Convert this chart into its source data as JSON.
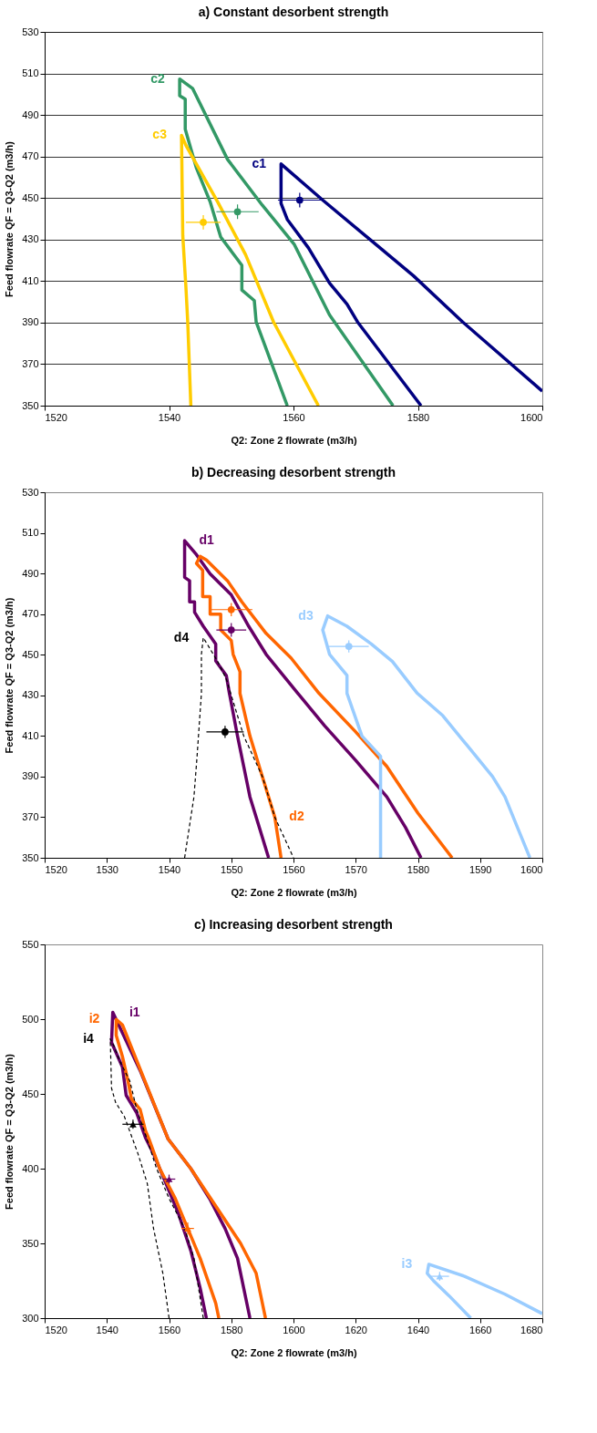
{
  "chart_data": [
    {
      "type": "line",
      "title": "a) Constant desorbent strength",
      "xlabel": "Q2: Zone 2 flowrate (m3/h)",
      "ylabel": "Feed flowrate QF = Q3-Q2 (m3/h)",
      "xlim": [
        1520,
        1600
      ],
      "ylim": [
        350,
        530
      ],
      "xticks": [
        1520,
        1540,
        1560,
        1580,
        1600
      ],
      "yticks": [
        350,
        370,
        390,
        410,
        430,
        450,
        470,
        490,
        510,
        530
      ],
      "grid": "y",
      "series": [
        {
          "name": "c1",
          "color": "#000080",
          "x": [
            1580.5,
            1570.3,
            1568.6,
            1565.8,
            1562.4,
            1559,
            1558,
            1558,
            1564.7,
            1572.5,
            1579.3,
            1587.2,
            1600
          ],
          "values": [
            350,
            390.3,
            398.9,
            409,
            426,
            439.7,
            447.4,
            466.4,
            449,
            429.5,
            412.5,
            390.3,
            357
          ]
        },
        {
          "name": "c2",
          "color": "#339966",
          "x": [
            1559,
            1554,
            1553.7,
            1551.7,
            1551.7,
            1548.3,
            1546.6,
            1544.4,
            1542.6,
            1542.6,
            1541.7,
            1541.7,
            1543.8,
            1549.4,
            1555,
            1560.1,
            1565.8,
            1576
          ],
          "values": [
            350,
            390.3,
            400.6,
            405.7,
            417.6,
            431.2,
            448.2,
            464.4,
            483.1,
            497.6,
            499.3,
            507.3,
            502.7,
            468.6,
            446.5,
            427.8,
            393.7,
            350
          ]
        },
        {
          "name": "c3",
          "color": "#ffcc00",
          "x": [
            1543.5,
            1543,
            1542.7,
            1542.2,
            1542,
            1542.7,
            1547.8,
            1552.3,
            1556.8,
            1564
          ],
          "values": [
            350,
            390.3,
            407.4,
            432,
            480.2,
            475.4,
            448.2,
            422.7,
            390.3,
            350
          ]
        },
        {
          "type": "scatter",
          "marker": "circle",
          "color": "#000080",
          "x": [
            1561
          ],
          "values": [
            449
          ],
          "errors": [
            3.5
          ],
          "xerrors": [
            3.5
          ]
        },
        {
          "type": "scatter",
          "marker": "circle",
          "color": "#339966",
          "x": [
            1551
          ],
          "values": [
            443.4
          ],
          "errors": [
            3.5
          ],
          "xerrors": [
            3.4
          ]
        },
        {
          "type": "scatter",
          "marker": "circle",
          "color": "#ffcc00",
          "x": [
            1545.5
          ],
          "values": [
            438.3
          ],
          "errors": [
            3.5
          ],
          "xerrors": [
            2.8
          ]
        }
      ]
    },
    {
      "type": "line",
      "title": "b) Decreasing desorbent strength",
      "xlabel": "Q2: Zone 2 flowrate (m3/h)",
      "ylabel": "Feed flowrate QF = Q3-Q2 (m3/h)",
      "xlim": [
        1520,
        1600
      ],
      "ylim": [
        350,
        530
      ],
      "xticks": [
        1520,
        1530,
        1540,
        1550,
        1560,
        1570,
        1580,
        1590,
        1600
      ],
      "yticks": [
        350,
        370,
        390,
        410,
        430,
        450,
        470,
        490,
        510,
        530
      ],
      "series": [
        {
          "name": "d1",
          "color": "#660066",
          "x": [
            1556,
            1554.5,
            1553,
            1552,
            1551,
            1549.7,
            1549.2,
            1547.5,
            1547.5,
            1545.5,
            1544.1,
            1544.1,
            1543.3,
            1543.3,
            1542.5,
            1542.5,
            1544.4,
            1546.6,
            1550,
            1552.8,
            1555.6,
            1560.7,
            1565,
            1570,
            1575,
            1578,
            1580.5
          ],
          "values": [
            350,
            365,
            380,
            395,
            410,
            431,
            439.8,
            447,
            455.3,
            464,
            470.9,
            476,
            476,
            486.4,
            488.1,
            506.2,
            499.3,
            489.8,
            479.5,
            464,
            450.2,
            431,
            415,
            398,
            380,
            365,
            350
          ]
        },
        {
          "name": "d2",
          "color": "#ff6600",
          "x": [
            1558,
            1557,
            1555,
            1553,
            1551.4,
            1551.4,
            1550.3,
            1550,
            1548.3,
            1548.3,
            1546.6,
            1546.6,
            1545.4,
            1545.4,
            1544.4,
            1545,
            1546,
            1549.4,
            1551.7,
            1555.6,
            1559.6,
            1564.1,
            1570,
            1575,
            1580,
            1585.5
          ],
          "values": [
            350,
            370,
            390,
            410,
            431,
            441.6,
            450.2,
            457,
            462.2,
            470,
            470,
            478.6,
            478.6,
            491.6,
            495,
            498.4,
            496.7,
            486.4,
            476,
            460.5,
            448.4,
            431,
            412,
            395,
            372,
            350
          ]
        },
        {
          "name": "d3",
          "color": "#99ccff",
          "x": [
            1574,
            1574,
            1571,
            1568.6,
            1568.6,
            1565.8,
            1564.7,
            1565.5,
            1568.6,
            1572.5,
            1575.9,
            1579.9,
            1584,
            1588,
            1592,
            1594,
            1596,
            1598
          ],
          "values": [
            350,
            400,
            410,
            431,
            439.8,
            450.2,
            462.2,
            469.1,
            464,
            455.3,
            446.7,
            431,
            420,
            405,
            390,
            380,
            365,
            350
          ]
        },
        {
          "name": "d4",
          "color": "#000000",
          "line_style": "dashed",
          "x": [
            1542.5,
            1543,
            1544,
            1544.5,
            1545.2,
            1545.2,
            1545.5,
            1547.8,
            1549.2,
            1552,
            1555,
            1557,
            1560
          ],
          "values": [
            350,
            360,
            380,
            400,
            431,
            450.2,
            458.4,
            446.7,
            438,
            410,
            390,
            370,
            350
          ]
        },
        {
          "type": "scatter",
          "marker": "circle",
          "color": "#660066",
          "x": [
            1550
          ],
          "values": [
            462.2
          ],
          "errors": [
            3.4
          ],
          "xerrors": [
            2.4
          ]
        },
        {
          "type": "scatter",
          "marker": "circle",
          "color": "#ff6600",
          "x": [
            1550
          ],
          "values": [
            472.2
          ],
          "errors": [
            3.3
          ],
          "xerrors": [
            3.4
          ]
        },
        {
          "type": "scatter",
          "marker": "circle",
          "color": "#99ccff",
          "x": [
            1568.9
          ],
          "values": [
            454.1
          ],
          "errors": [
            3
          ],
          "xerrors": [
            3.2
          ]
        },
        {
          "type": "scatter",
          "marker": "circle",
          "color": "#000000",
          "x": [
            1549
          ],
          "values": [
            412
          ],
          "errors": [
            3
          ],
          "xerrors": [
            3
          ]
        }
      ]
    },
    {
      "type": "line",
      "title": "c) Increasing desorbent strength",
      "xlabel": "Q2: Zone 2 flowrate (m3/h)",
      "ylabel": "Feed flowrate QF = Q3-Q2 (m3/h)",
      "xlim": [
        1520,
        1680
      ],
      "ylim": [
        300,
        550
      ],
      "xticks": [
        1520,
        1540,
        1560,
        1580,
        1600,
        1620,
        1640,
        1660,
        1680
      ],
      "yticks": [
        300,
        350,
        400,
        450,
        500,
        550
      ],
      "series": [
        {
          "name": "i1",
          "color": "#660066",
          "x": [
            1572,
            1570,
            1567,
            1563,
            1558,
            1555,
            1552.4,
            1549.6,
            1546.2,
            1545,
            1541.5,
            1541.9,
            1550.7,
            1559.7,
            1567,
            1573,
            1578,
            1582,
            1586
          ],
          "values": [
            300,
            320,
            345,
            370,
            395,
            410,
            420.8,
            437.3,
            449.1,
            468,
            484.4,
            504.5,
            465.6,
            419.8,
            400,
            380,
            360,
            340,
            300
          ]
        },
        {
          "name": "i2",
          "color": "#ff6600",
          "x": [
            1576,
            1575,
            1570,
            1566,
            1562,
            1557,
            1553.5,
            1552.4,
            1550.7,
            1547.9,
            1546.8,
            1545,
            1543,
            1543,
            1545,
            1559.7,
            1567,
            1575,
            1583,
            1588,
            1591
          ],
          "values": [
            300,
            310,
            340,
            360,
            380,
            400,
            420,
            425.5,
            439.6,
            446.7,
            458.5,
            475,
            489.2,
            499.8,
            496.2,
            419.8,
            400,
            375,
            350,
            330,
            300
          ]
        },
        {
          "name": "i3",
          "color": "#99ccff",
          "x": [
            1657,
            1650,
            1645,
            1643,
            1643.5,
            1655,
            1668,
            1680
          ],
          "values": [
            300,
            315,
            325,
            330,
            336,
            328,
            316,
            303
          ]
        },
        {
          "name": "i4",
          "color": "#000000",
          "line_style": "dashed",
          "x": [
            1560,
            1558,
            1555,
            1553,
            1550,
            1545.6,
            1542.8,
            1541.5,
            1541.1,
            1542.3,
            1544,
            1547.4,
            1549.6,
            1552.4,
            1556,
            1560,
            1565,
            1568,
            1571
          ],
          "values": [
            300,
            330,
            360,
            390,
            410,
            435,
            444.3,
            453.8,
            486.8,
            482,
            472.6,
            458.5,
            439.6,
            423,
            400,
            380,
            360,
            340,
            300
          ]
        },
        {
          "type": "scatter",
          "marker": "triangle",
          "color": "#660066",
          "x": [
            1560
          ],
          "values": [
            393
          ],
          "errors": [
            3
          ],
          "xerrors": [
            2
          ]
        },
        {
          "type": "scatter",
          "marker": "triangle",
          "color": "#ff6600",
          "x": [
            1566
          ],
          "values": [
            360
          ],
          "errors": [
            4
          ],
          "xerrors": [
            2
          ]
        },
        {
          "type": "scatter",
          "marker": "triangle",
          "color": "#99ccff",
          "x": [
            1647
          ],
          "values": [
            328
          ],
          "errors": [
            3
          ],
          "xerrors": [
            3
          ]
        },
        {
          "type": "scatter",
          "marker": "triangle",
          "color": "#000000",
          "x": [
            1548.4
          ],
          "values": [
            429.7
          ],
          "errors": [
            3
          ],
          "xerrors": [
            3.4
          ]
        }
      ]
    }
  ]
}
